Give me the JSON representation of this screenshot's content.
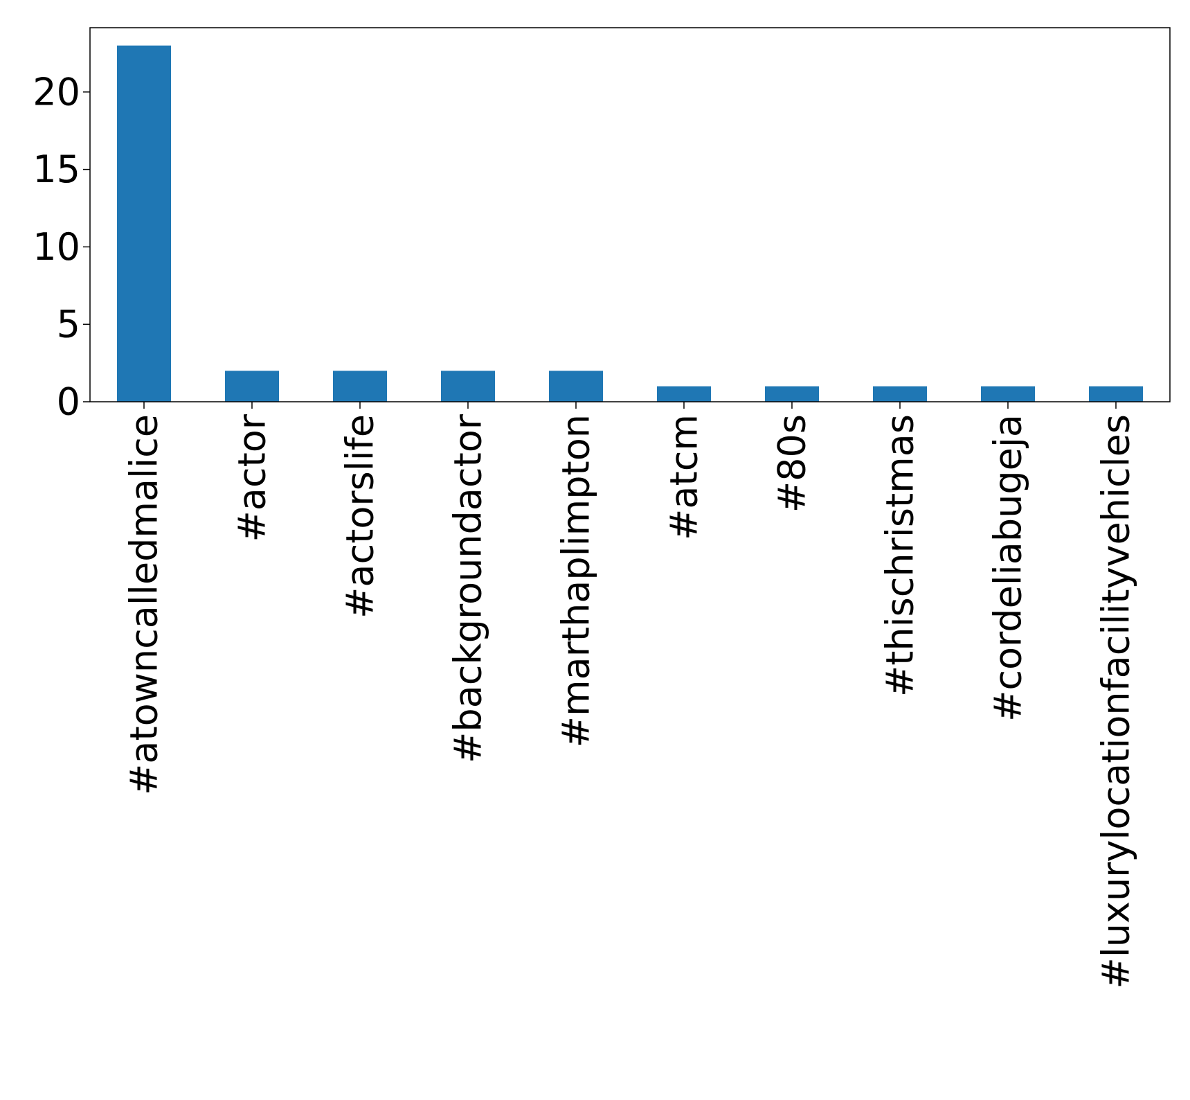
{
  "chart_data": {
    "type": "bar",
    "categories": [
      "#atowncalledmalice",
      "#actor",
      "#actorslife",
      "#backgroundactor",
      "#marthaplimpton",
      "#atcm",
      "#80s",
      "#thischristmas",
      "#cordeliabugeja",
      "#luxurylocationfacilityvehicles"
    ],
    "values": [
      23,
      2,
      2,
      2,
      2,
      1,
      1,
      1,
      1,
      1
    ],
    "ylim": [
      0,
      24.15
    ],
    "yticks": [
      0,
      5,
      10,
      15,
      20
    ],
    "bar_color": "#1f77b4",
    "grid": false,
    "legend": "none"
  }
}
